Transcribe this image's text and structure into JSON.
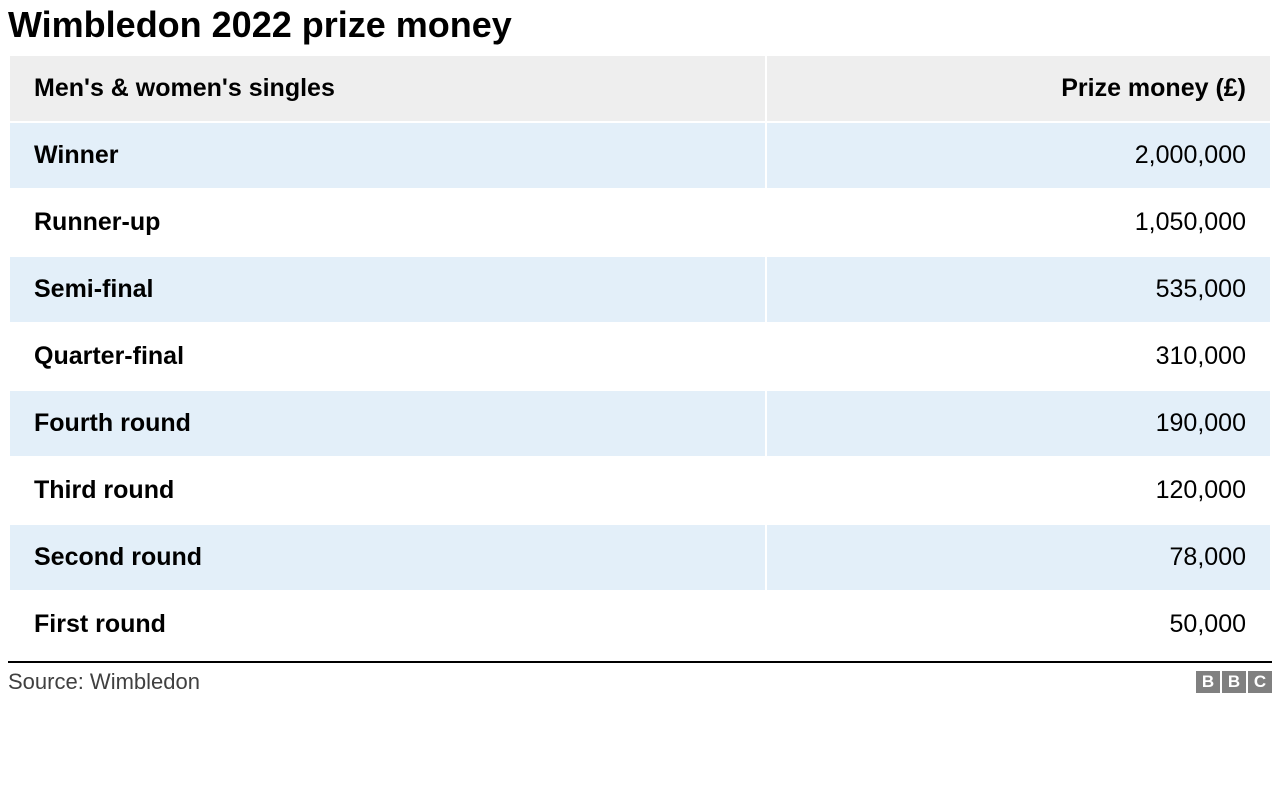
{
  "title": "Wimbledon 2022 prize money",
  "table": {
    "columns": [
      "Men's & women's singles",
      "Prize money (£)"
    ],
    "rows": [
      [
        "Winner",
        "2,000,000"
      ],
      [
        "Runner-up",
        "1,050,000"
      ],
      [
        "Semi-final",
        "535,000"
      ],
      [
        "Quarter-final",
        "310,000"
      ],
      [
        "Fourth round",
        "190,000"
      ],
      [
        "Third round",
        "120,000"
      ],
      [
        "Second round",
        "78,000"
      ],
      [
        "First round",
        "50,000"
      ]
    ],
    "header_bg": "#eeeeee",
    "row_odd_bg": "#e3eff9",
    "row_even_bg": "#ffffff",
    "title_fontsize": 36,
    "header_fontsize": 25,
    "cell_fontsize": 25,
    "text_color": "#000000"
  },
  "footer": {
    "source": "Source: Wimbledon",
    "logo_letters": [
      "B",
      "B",
      "C"
    ],
    "logo_bg": "#808080",
    "logo_fg": "#ffffff"
  }
}
